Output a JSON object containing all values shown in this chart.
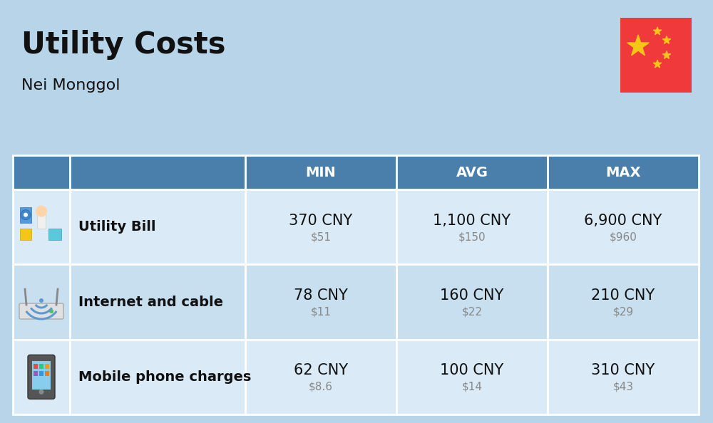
{
  "title": "Utility Costs",
  "subtitle": "Nei Monggol",
  "background_color": "#b8d4e8",
  "header_color": "#4a7fac",
  "header_text_color": "#ffffff",
  "row_color_odd": "#daeaf6",
  "row_color_even": "#c8dff0",
  "text_color_main": "#111111",
  "text_color_sub": "#888888",
  "border_color": "#ffffff",
  "columns": [
    "MIN",
    "AVG",
    "MAX"
  ],
  "rows": [
    {
      "label": "Utility Bill",
      "icon": "utility",
      "min_cny": "370 CNY",
      "min_usd": "$51",
      "avg_cny": "1,100 CNY",
      "avg_usd": "$150",
      "max_cny": "6,900 CNY",
      "max_usd": "$960"
    },
    {
      "label": "Internet and cable",
      "icon": "internet",
      "min_cny": "78 CNY",
      "min_usd": "$11",
      "avg_cny": "160 CNY",
      "avg_usd": "$22",
      "max_cny": "210 CNY",
      "max_usd": "$29"
    },
    {
      "label": "Mobile phone charges",
      "icon": "mobile",
      "min_cny": "62 CNY",
      "min_usd": "$8.6",
      "avg_cny": "100 CNY",
      "avg_usd": "$14",
      "max_cny": "310 CNY",
      "max_usd": "$43"
    }
  ],
  "flag_color_red": "#f0393a",
  "flag_color_yellow": "#f5c518",
  "title_fontsize": 30,
  "subtitle_fontsize": 16,
  "header_fontsize": 14,
  "label_fontsize": 14,
  "cny_fontsize": 15,
  "usd_fontsize": 11
}
